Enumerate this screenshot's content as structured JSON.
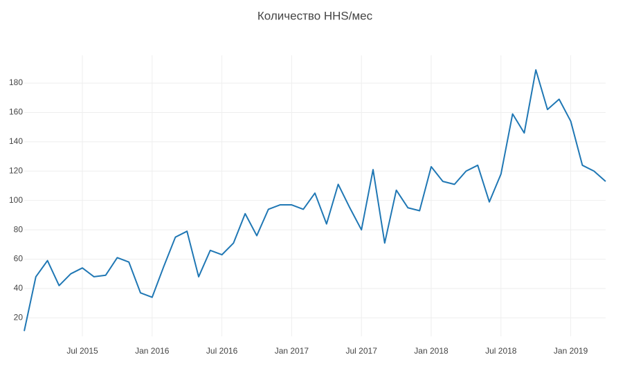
{
  "chart_data": {
    "type": "line",
    "title": "Количество HHS/мес",
    "x": [
      "2015-02",
      "2015-03",
      "2015-04",
      "2015-05",
      "2015-06",
      "2015-07",
      "2015-08",
      "2015-09",
      "2015-10",
      "2015-11",
      "2015-12",
      "2016-01",
      "2016-02",
      "2016-03",
      "2016-04",
      "2016-05",
      "2016-06",
      "2016-07",
      "2016-08",
      "2016-09",
      "2016-10",
      "2016-11",
      "2016-12",
      "2017-01",
      "2017-02",
      "2017-03",
      "2017-04",
      "2017-05",
      "2017-06",
      "2017-07",
      "2017-08",
      "2017-09",
      "2017-10",
      "2017-11",
      "2017-12",
      "2018-01",
      "2018-02",
      "2018-03",
      "2018-04",
      "2018-05",
      "2018-06",
      "2018-07",
      "2018-08",
      "2018-09",
      "2018-10",
      "2018-11",
      "2018-12",
      "2019-01",
      "2019-02",
      "2019-03",
      "2019-04"
    ],
    "series": [
      {
        "color": "#1f77b4",
        "values": [
          11,
          48,
          59,
          42,
          50,
          54,
          48,
          49,
          61,
          58,
          37,
          34,
          55,
          75,
          79,
          48,
          66,
          63,
          71,
          91,
          76,
          94,
          97,
          97,
          94,
          105,
          84,
          111,
          95,
          80,
          121,
          71,
          107,
          95,
          93,
          123,
          113,
          111,
          120,
          124,
          99,
          118,
          159,
          146,
          189,
          162,
          169,
          154,
          124,
          120,
          113
        ]
      }
    ],
    "xlim": [
      "2015-02",
      "2019-04"
    ],
    "xticks": [
      {
        "value": "2015-07",
        "label": "Jul 2015"
      },
      {
        "value": "2016-01",
        "label": "Jan 2016"
      },
      {
        "value": "2016-07",
        "label": "Jul 2016"
      },
      {
        "value": "2017-01",
        "label": "Jan 2017"
      },
      {
        "value": "2017-07",
        "label": "Jul 2017"
      },
      {
        "value": "2018-01",
        "label": "Jan 2018"
      },
      {
        "value": "2018-07",
        "label": "Jul 2018"
      },
      {
        "value": "2019-01",
        "label": "Jan 2019"
      }
    ],
    "ylim": [
      7.4,
      198.9
    ],
    "yticks": [
      20,
      40,
      60,
      80,
      100,
      120,
      140,
      160,
      180
    ],
    "grid": true
  }
}
